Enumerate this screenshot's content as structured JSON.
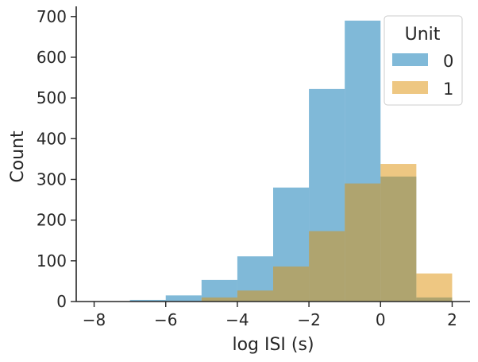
{
  "chart_data": {
    "type": "bar",
    "subtype": "histogram",
    "xlabel": "log ISI (s)",
    "ylabel": "Count",
    "xlim": [
      -8.5,
      2.5
    ],
    "ylim": [
      0,
      725
    ],
    "xticks": [
      -8,
      -6,
      -4,
      -2,
      0,
      2
    ],
    "yticks": [
      0,
      100,
      200,
      300,
      400,
      500,
      600,
      700
    ],
    "bin_edges": [
      -8,
      -7,
      -6,
      -5,
      -4,
      -3,
      -2,
      -1,
      0,
      1,
      2
    ],
    "legend": {
      "title": "Unit",
      "placement": "top-right"
    },
    "series": [
      {
        "name": "0",
        "color": "#0173b2",
        "values": [
          1,
          4,
          15,
          53,
          111,
          280,
          522,
          690,
          307,
          10
        ]
      },
      {
        "name": "1",
        "color": "#de8f05",
        "values": [
          0,
          0,
          1,
          10,
          27,
          86,
          173,
          290,
          338,
          69
        ]
      }
    ],
    "overlay_alpha": 0.5,
    "grid": false
  }
}
